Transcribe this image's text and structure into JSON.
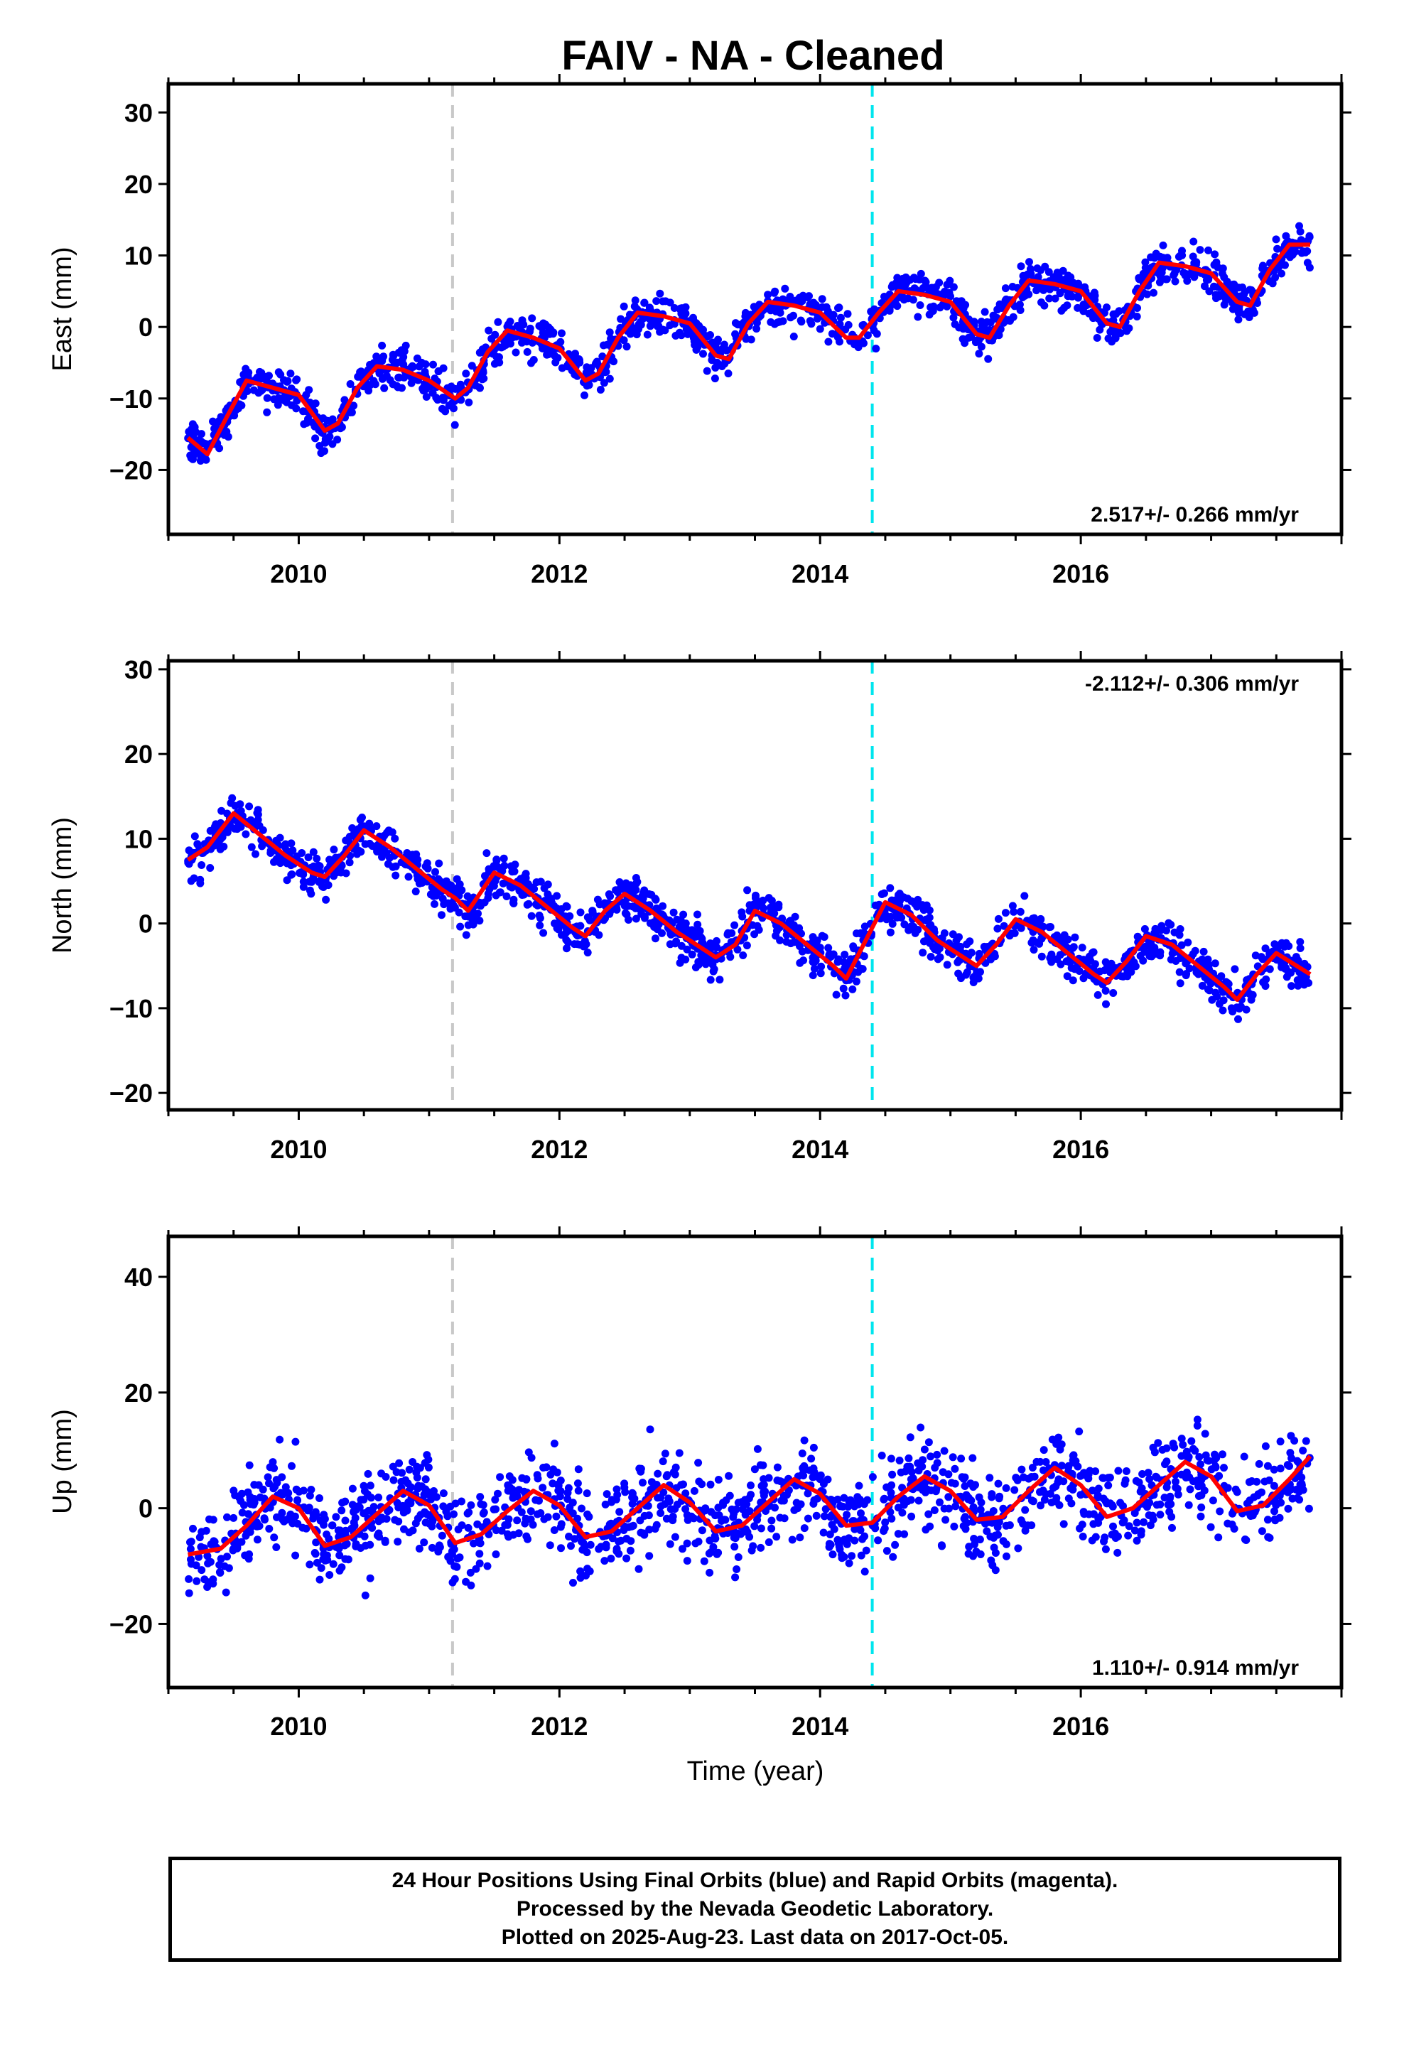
{
  "chart_data": {
    "type": "scatter",
    "title": "FAIV  - NA - Cleaned",
    "xlabel": "Time (year)",
    "xlim": [
      2009.0,
      2018.0
    ],
    "x_ticks": [
      2010,
      2012,
      2014,
      2016
    ],
    "markers": [
      {
        "x": 2011.18,
        "color": "#c8c8c8",
        "style": "dashed"
      },
      {
        "x": 2014.4,
        "color": "#00e5ee",
        "style": "dashed"
      }
    ],
    "data_start": 2009.15,
    "data_end": 2017.76,
    "grid": false,
    "legend": "none",
    "colors": {
      "points": "#0000ff",
      "fit": "#ff0000",
      "frame": "#000000"
    },
    "panels": [
      {
        "ylabel": "East (mm)",
        "ylim": [
          -29,
          34
        ],
        "y_ticks": [
          -20,
          -10,
          0,
          10,
          20,
          30
        ],
        "rate_label": "2.517+/- 0.266 mm/yr",
        "rate_position": "bottom-right",
        "fit_x": [
          2009.15,
          2009.3,
          2009.45,
          2009.6,
          2009.8,
          2010.0,
          2010.2,
          2010.3,
          2010.45,
          2010.6,
          2010.8,
          2011.0,
          2011.2,
          2011.3,
          2011.45,
          2011.6,
          2011.8,
          2012.0,
          2012.2,
          2012.3,
          2012.45,
          2012.6,
          2012.8,
          2013.0,
          2013.2,
          2013.3,
          2013.45,
          2013.6,
          2013.8,
          2014.0,
          2014.2,
          2014.3,
          2014.45,
          2014.6,
          2014.8,
          2015.0,
          2015.2,
          2015.3,
          2015.45,
          2015.6,
          2015.8,
          2016.0,
          2016.2,
          2016.3,
          2016.45,
          2016.6,
          2016.8,
          2017.0,
          2017.2,
          2017.3,
          2017.45,
          2017.6,
          2017.76
        ],
        "fit_y": [
          -15.5,
          -17.8,
          -12.5,
          -7.5,
          -8.5,
          -9.5,
          -14.5,
          -13.5,
          -8.5,
          -5.5,
          -6.0,
          -7.5,
          -10.0,
          -8.5,
          -3.5,
          -0.5,
          -1.5,
          -3.0,
          -7.5,
          -6.5,
          -1.5,
          2.0,
          1.5,
          0.5,
          -4.0,
          -4.5,
          0.5,
          3.5,
          3.0,
          2.0,
          -1.5,
          -1.5,
          2.0,
          5.0,
          4.5,
          3.5,
          -1.0,
          -1.5,
          3.0,
          6.5,
          6.0,
          5.0,
          0.5,
          0.0,
          5.0,
          9.0,
          8.5,
          7.5,
          3.5,
          3.0,
          8.0,
          11.5,
          11.5
        ],
        "rate_mm_yr": 2.517
      },
      {
        "ylabel": "North (mm)",
        "ylim": [
          -22,
          31
        ],
        "y_ticks": [
          -20,
          -10,
          0,
          10,
          20,
          30
        ],
        "rate_label": "-2.112+/- 0.306 mm/yr",
        "rate_position": "top-right",
        "fit_x": [
          2009.15,
          2009.3,
          2009.5,
          2009.7,
          2009.9,
          2010.1,
          2010.2,
          2010.35,
          2010.5,
          2010.7,
          2010.9,
          2011.1,
          2011.2,
          2011.3,
          2011.5,
          2011.7,
          2011.9,
          2012.1,
          2012.2,
          2012.35,
          2012.5,
          2012.7,
          2012.9,
          2013.1,
          2013.2,
          2013.35,
          2013.5,
          2013.7,
          2013.9,
          2014.1,
          2014.2,
          2014.35,
          2014.5,
          2014.7,
          2014.9,
          2015.1,
          2015.2,
          2015.35,
          2015.5,
          2015.7,
          2015.9,
          2016.1,
          2016.2,
          2016.35,
          2016.5,
          2016.7,
          2016.9,
          2017.1,
          2017.2,
          2017.35,
          2017.5,
          2017.76
        ],
        "fit_y": [
          7.5,
          9.0,
          13.0,
          10.5,
          8.0,
          6.0,
          5.5,
          8.0,
          11.0,
          9.0,
          6.5,
          4.0,
          3.0,
          1.5,
          6.0,
          4.5,
          2.0,
          -0.5,
          -1.5,
          1.5,
          3.5,
          1.5,
          -1.0,
          -3.0,
          -4.0,
          -2.5,
          1.5,
          0.0,
          -2.5,
          -5.0,
          -6.5,
          -2.0,
          2.5,
          1.0,
          -2.0,
          -4.0,
          -5.0,
          -2.5,
          0.5,
          -1.0,
          -3.5,
          -6.0,
          -7.0,
          -4.5,
          -1.5,
          -2.5,
          -5.0,
          -7.5,
          -9.0,
          -6.0,
          -3.5,
          -6.0
        ],
        "rate_mm_yr": -2.112
      },
      {
        "ylabel": "Up (mm)",
        "ylim": [
          -31,
          47
        ],
        "y_ticks": [
          -20,
          0,
          20,
          40
        ],
        "rate_label": "1.110+/- 0.914 mm/yr",
        "rate_position": "bottom-right",
        "fit_x": [
          2009.15,
          2009.4,
          2009.6,
          2009.8,
          2010.0,
          2010.2,
          2010.4,
          2010.6,
          2010.8,
          2011.0,
          2011.2,
          2011.4,
          2011.6,
          2011.8,
          2012.0,
          2012.2,
          2012.4,
          2012.6,
          2012.8,
          2013.0,
          2013.2,
          2013.4,
          2013.6,
          2013.8,
          2014.0,
          2014.2,
          2014.4,
          2014.6,
          2014.8,
          2015.0,
          2015.2,
          2015.4,
          2015.6,
          2015.8,
          2016.0,
          2016.2,
          2016.4,
          2016.6,
          2016.8,
          2017.0,
          2017.2,
          2017.4,
          2017.6,
          2017.76
        ],
        "fit_y": [
          -8.0,
          -7.0,
          -3.0,
          2.0,
          0.0,
          -6.5,
          -5.0,
          -1.0,
          3.0,
          0.5,
          -6.0,
          -4.5,
          -0.5,
          3.0,
          0.5,
          -5.0,
          -4.0,
          0.0,
          4.0,
          1.0,
          -4.0,
          -3.0,
          1.0,
          5.0,
          2.5,
          -3.0,
          -2.5,
          2.0,
          5.5,
          3.0,
          -2.0,
          -1.5,
          3.0,
          7.0,
          4.0,
          -1.5,
          0.0,
          4.0,
          8.0,
          5.5,
          -0.5,
          0.5,
          5.0,
          9.0
        ],
        "rate_mm_yr": 1.11
      }
    ]
  },
  "footer": {
    "line1": "24 Hour Positions Using Final Orbits (blue) and Rapid Orbits (magenta).",
    "line2": "Processed by the Nevada Geodetic Laboratory.",
    "line3": "Plotted on 2025-Aug-23. Last data on 2017-Oct-05."
  }
}
